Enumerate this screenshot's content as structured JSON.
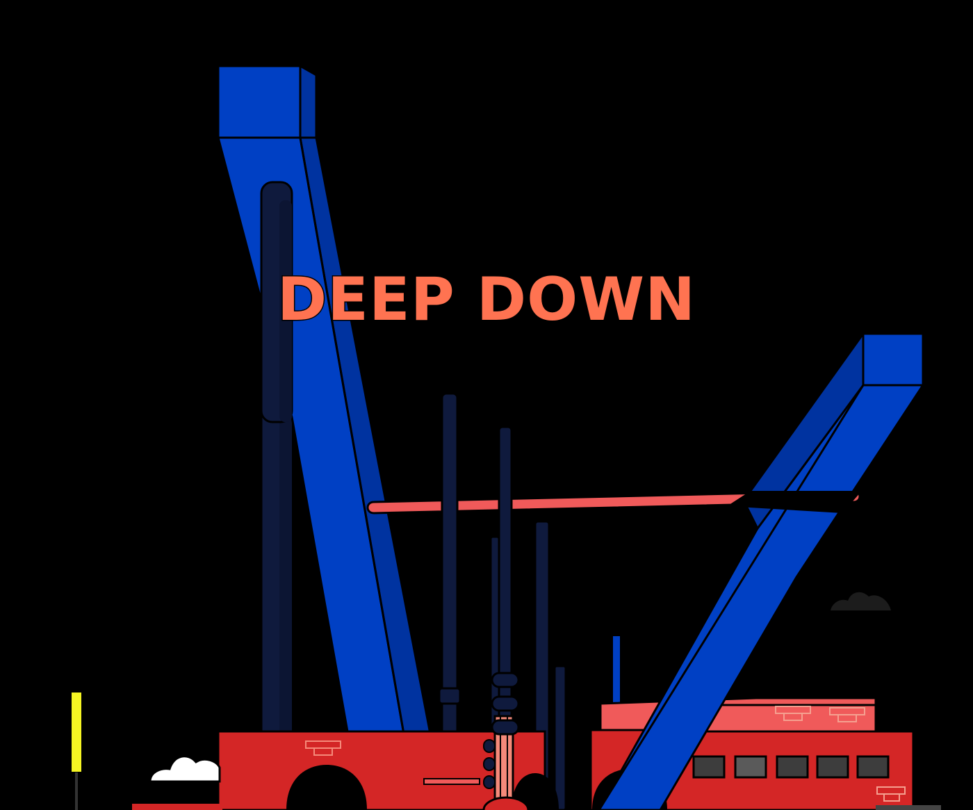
{
  "title": "DEEP DOWN",
  "colors": {
    "background": "#000000",
    "title": "#ff7351",
    "blue": "#0040c4",
    "navy": "#0f1a3d",
    "red": "#d42626",
    "salmon": "#f05a5a",
    "yellow": "#f5f523"
  }
}
